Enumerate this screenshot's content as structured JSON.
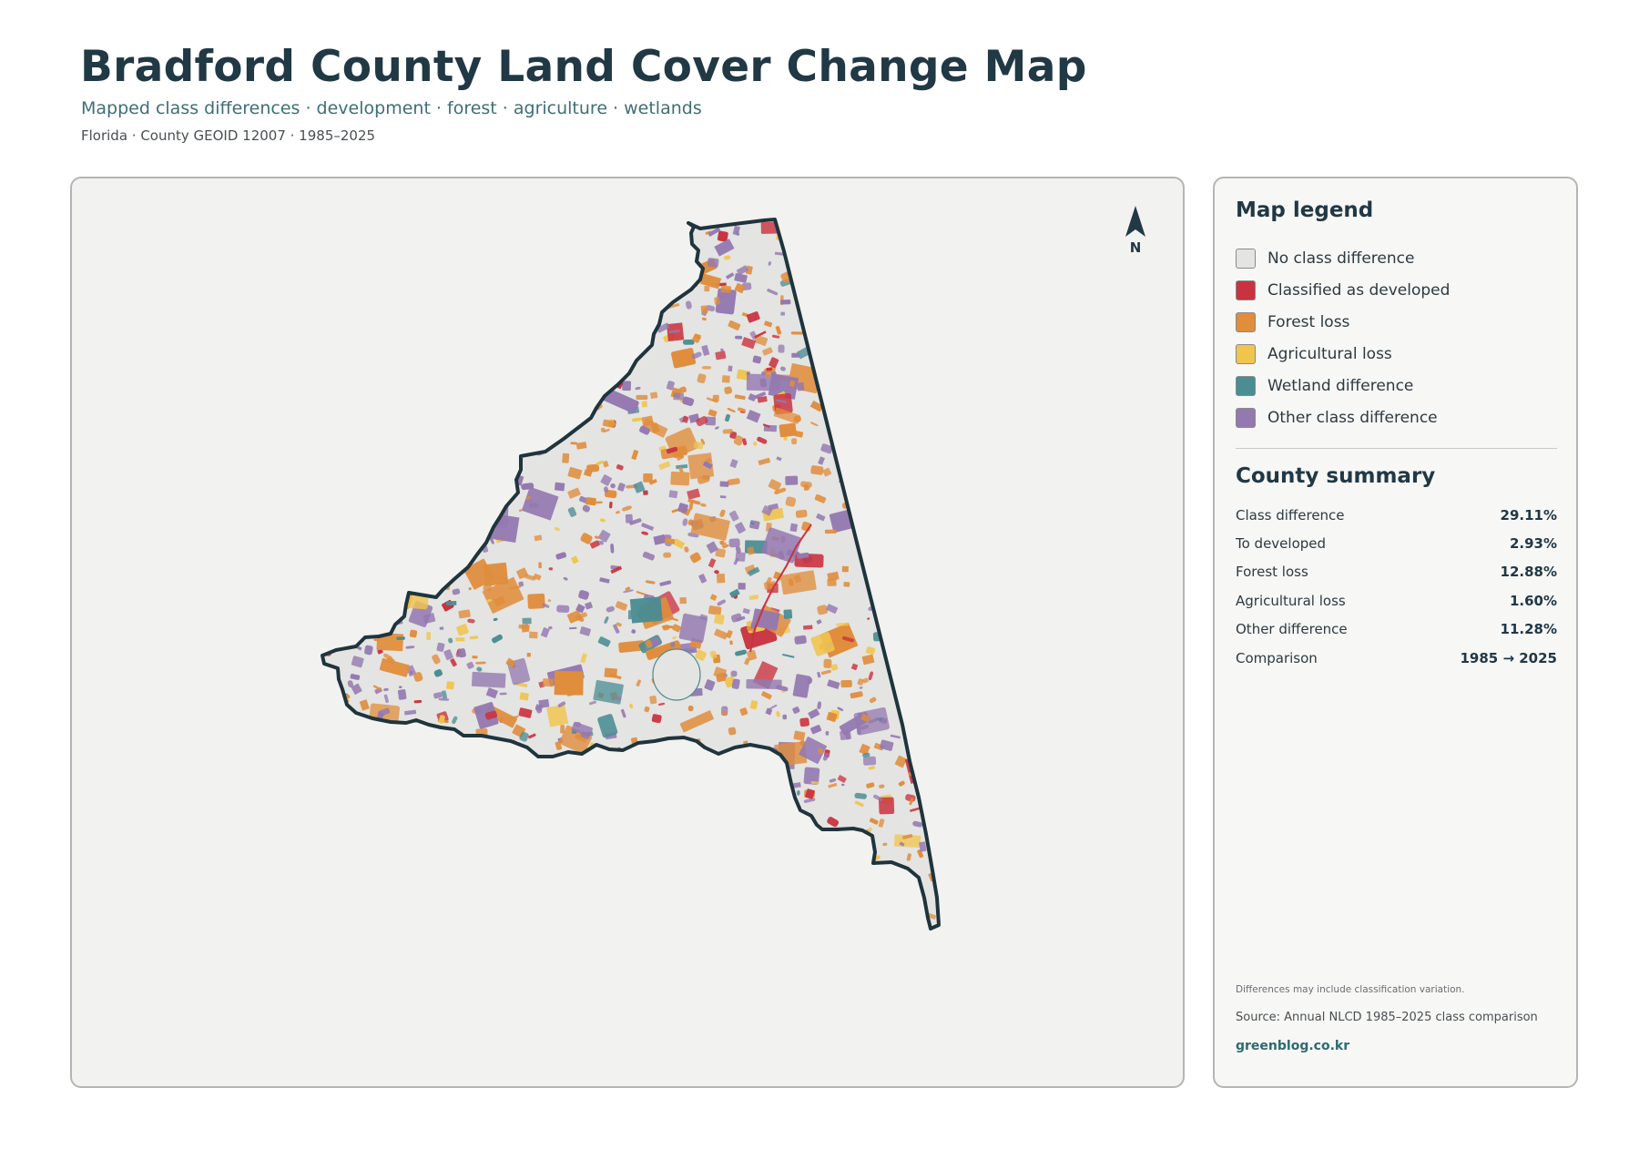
{
  "header": {
    "title": "Bradford County Land Cover Change Map",
    "subtitle": "Mapped class differences · development · forest · agriculture · wetlands",
    "meta": "Florida · County GEOID 12007 · 1985–2025"
  },
  "map": {
    "north_label": "N",
    "north_icon": "north-arrow-icon",
    "colors": {
      "no_difference": "#e4e4e2",
      "developed": "#c9323f",
      "forest_loss": "#e08d3c",
      "agricultural_loss": "#f0c54f",
      "wetland": "#4a8d93",
      "other": "#9479b0",
      "boundary": "#1f343d"
    }
  },
  "legend": {
    "title": "Map legend",
    "items": [
      {
        "label": "No class difference",
        "color": "#e4e4e2"
      },
      {
        "label": "Classified as developed",
        "color": "#c9323f"
      },
      {
        "label": "Forest loss",
        "color": "#e08d3c"
      },
      {
        "label": "Agricultural loss",
        "color": "#f0c54f"
      },
      {
        "label": "Wetland difference",
        "color": "#4a8d93"
      },
      {
        "label": "Other class difference",
        "color": "#9479b0"
      }
    ]
  },
  "summary": {
    "title": "County summary",
    "rows": [
      {
        "label": "Class difference",
        "value": "29.11%"
      },
      {
        "label": "To developed",
        "value": "2.93%"
      },
      {
        "label": "Forest loss",
        "value": "12.88%"
      },
      {
        "label": "Agricultural loss",
        "value": "1.60%"
      },
      {
        "label": "Other difference",
        "value": "11.28%"
      },
      {
        "label": "Comparison",
        "value": "1985 → 2025"
      }
    ]
  },
  "footer": {
    "note": "Differences may include classification variation.",
    "source": "Source: Annual NLCD 1985–2025 class comparison",
    "site": "greenblog.co.kr"
  }
}
